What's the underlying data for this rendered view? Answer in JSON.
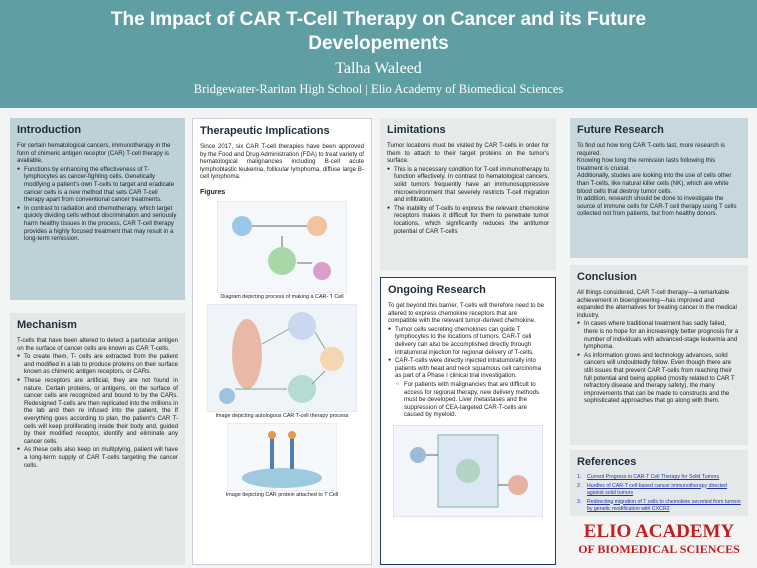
{
  "header": {
    "title": "The Impact of CAR T-Cell Therapy on Cancer and its Future Developements",
    "author": "Talha Waleed",
    "affiliation": "Bridgewater-Raritan High School | Elio Academy of Biomedical Sciences"
  },
  "sections": {
    "intro": {
      "heading": "Introduction",
      "blocks": [
        {
          "p": "For certain hematological cancers, immunotherapy in the form of chimeric antigen receptor (CAR) T-cell therapy is available."
        },
        {
          "li": "Functions by enhancing the effectiveness of T-lymphocytes as cancer-fighting cells. Genetically modifying a patient's own T-cells to target and eradicate cancer cells is a new method that sets CAR T-cell therapy apart from conventional cancer treatments."
        },
        {
          "li": "In contrast to radiation and chemotherapy, which target quickly dividing cells without discrimination and seriously harm healthy tissues in the process, CAR T-cell therapy provides a highly focused treatment that may result in a long-term remission."
        }
      ]
    },
    "mechanism": {
      "heading": "Mechanism",
      "blocks": [
        {
          "p": "T-cells that have been altered to detect a particular antigen on the surface of cancer cells are known as CAR T-cells."
        },
        {
          "li": "To create them, T- cells are extracted from the patient and modified in a lab to produce proteins on their surface known as chimeric antigen receptors, or CARs."
        },
        {
          "li": "These receptors are artificial, they are not found in nature. Certain proteins, or antigens, on the surface of cancer cells are recognized and bound to by the CARs. Redesigned T-cells are then replicated into the millions in the lab and then re infused into the patient, the If everything goes according to plan, the patient's CAR T-cells will keep proliferating inside their body and, guided by their modified receptor, identify and eliminate any cancer cells."
        },
        {
          "li": "As these cells also keep on multiplying, patient will have a long-term supply of CAR T-cells targeting the cancer cells."
        }
      ]
    },
    "therapeutic": {
      "heading": "Therapeutic Implications",
      "blocks": [
        {
          "p": "Since 2017, six CAR T-cell therapies have been approved by the Food and Drug Administration (FDA) to treat variety of hematological malignancies including B-cell acute lymphoblastic leukemia, follicular lymphoma, diffuse large B-cell lymphoma."
        }
      ]
    },
    "limitations": {
      "heading": "Limitations",
      "blocks": [
        {
          "p": "Tumor locations must be visited by CAR T-cells in order for them to attach to their target proteins on the tumor's surface."
        },
        {
          "li": "This is a necessary condition for T-cell immunotherapy to function effectively. In contrast to hematological cancers, solid tumors frequently have an immunosuppressive microenvironment that severely restricts T-cell migration and infiltration."
        },
        {
          "li": "The inability of T-cells to express the relevant chemokine receptors makes it difficult for them to penetrate tumor locations, which significantly reduces the antitumor potential of CAR T-cells"
        }
      ]
    },
    "ongoing": {
      "heading": "Ongoing Research",
      "blocks": [
        {
          "p": "To get beyond this barrier, T-cells will therefore need to be altered to express chemokine receptors that are compatible with the relevant tumor-derived chemokine."
        },
        {
          "li": "Tumor cells secreting chemokines can guide T lymphocytes to the locations of tumors. CAR-T cell delivery can also be accomplished directly through intratumoral injection for regional delivery of T-cells."
        },
        {
          "li": "CAR-T-cells were directly injected intratumorally into patients with head and neck squamous cell carcinoma as part of a Phase I clinical trial investigation."
        },
        {
          "sub": "For patients with malignancies that are difficult to access for regional therapy, new delivery methods must be developed. Liver metastases and the suppression of CEA-targeted CAR-T-cells are caused by myeloid."
        }
      ]
    },
    "future": {
      "heading": "Future Research",
      "blocks": [
        {
          "p": "To find out how long CAR T-cells last, more research is required."
        },
        {
          "p": "Knowing how long the remission lasts following this treatment is crucial."
        },
        {
          "p": "Additionally, studies are looking into the use of cells other than T-cells, like natural killer cells (NK), which are white blood cells that destroy tumor cells."
        },
        {
          "p": "In addition, research should be done to investigate the source of immune cells for CAR-T cell therapy using T cells collected not from patients, but from healthy donors."
        }
      ]
    },
    "conclusion": {
      "heading": "Conclusion",
      "blocks": [
        {
          "p": "All things considered, CAR T-cell therapy—a remarkable achievement in bioengineering—has improved and expanded the alternatives for treating cancer in the medical industry."
        },
        {
          "li": "In cases where traditional treatment has sadly failed, there is no hope for an increasingly better prognosis for a number of individuals with advanced-stage leukemia and lymphoma."
        },
        {
          "li": "As information grows and technology advances, solid cancers will undoubtedly follow. Even though there are still issues that prevent CAR T-cells from reaching their full potential and being applied (mostly related to CAR T refractory disease and therapy safety), the many improvements that can be made to constructs and the sophisticated approaches that go along with them."
        }
      ]
    },
    "references": {
      "heading": "References",
      "blocks": [
        {
          "ref": "Current Progress in CAR-T Cell Therapy for Solid Tumors"
        },
        {
          "ref": "Hurdles of CAR-T cell-based cancer immunotherapy directed against solid tumors"
        },
        {
          "ref": "Redirecting migration of T cells to chemokine secreted from tumors by genetic modification with CXCR2"
        }
      ]
    }
  },
  "figures": {
    "heading": "Figures",
    "captions": [
      "Diagram depicting process of making a CAR- T Cell",
      "Image  depicting autologous CAR T-cell therapy process",
      "Image depicting CAR protein attached to T Cell"
    ]
  },
  "logo": {
    "line1": "ELIO ACADEMY",
    "line2": "OF BIOMEDICAL SCIENCES"
  }
}
